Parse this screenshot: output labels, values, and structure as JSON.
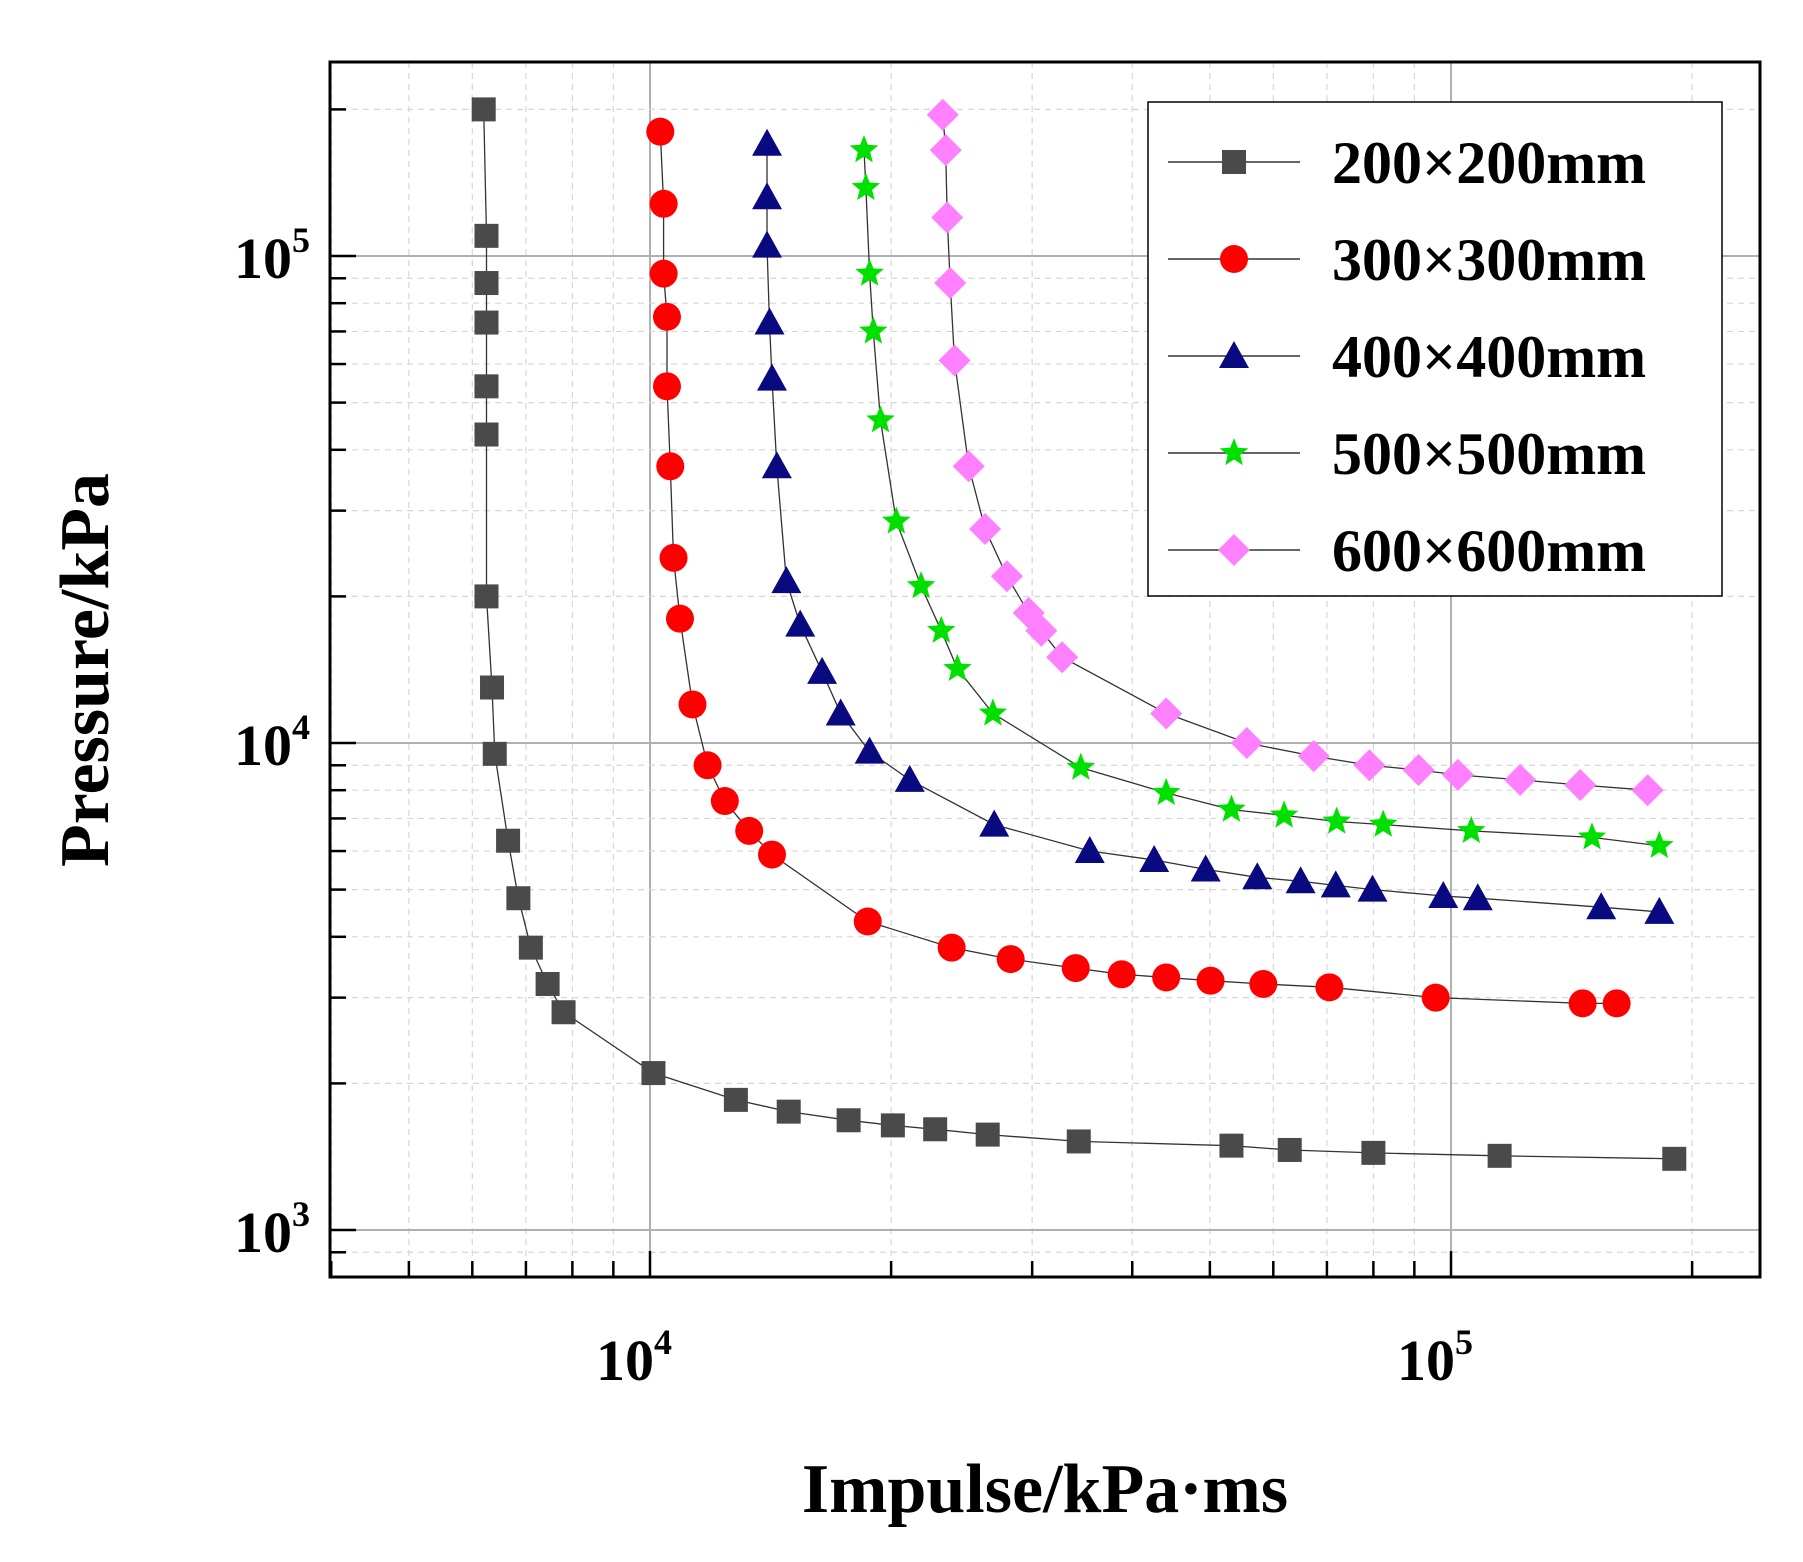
{
  "chart_data": {
    "type": "scatter",
    "xlabel": "Impulse/kPa·ms",
    "ylabel": "Pressure/kPa",
    "xscale": "log",
    "yscale": "log",
    "xlim": [
      4000,
      240000
    ],
    "ylim": [
      800,
      250000
    ],
    "x_ticks": [
      {
        "base": "10",
        "exp": "4",
        "value": 10000
      },
      {
        "base": "10",
        "exp": "5",
        "value": 100000
      }
    ],
    "y_ticks": [
      {
        "base": "10",
        "exp": "3",
        "value": 1000
      },
      {
        "base": "10",
        "exp": "4",
        "value": 10000
      },
      {
        "base": "10",
        "exp": "5",
        "value": 100000
      }
    ],
    "grid": true,
    "legend_position": "top-right",
    "series": [
      {
        "name": "200×200mm",
        "marker": "square",
        "color": "#4a4a4a",
        "points": [
          [
            6200,
            200000
          ],
          [
            6250,
            110000
          ],
          [
            6250,
            88000
          ],
          [
            6250,
            73000
          ],
          [
            6250,
            54000
          ],
          [
            6250,
            43000
          ],
          [
            6250,
            20000
          ],
          [
            6350,
            13000
          ],
          [
            6400,
            9500
          ],
          [
            6650,
            6300
          ],
          [
            6850,
            4800
          ],
          [
            7100,
            3800
          ],
          [
            7450,
            3200
          ],
          [
            7800,
            2800
          ],
          [
            10100,
            2100
          ],
          [
            12800,
            1850
          ],
          [
            14900,
            1750
          ],
          [
            17700,
            1680
          ],
          [
            20100,
            1640
          ],
          [
            22700,
            1610
          ],
          [
            26400,
            1570
          ],
          [
            34300,
            1520
          ],
          [
            53200,
            1490
          ],
          [
            62900,
            1460
          ],
          [
            80000,
            1440
          ],
          [
            115000,
            1420
          ],
          [
            190000,
            1400
          ]
        ]
      },
      {
        "name": "300×300mm",
        "marker": "circle",
        "color": "#ff0000",
        "points": [
          [
            10300,
            180000
          ],
          [
            10400,
            128000
          ],
          [
            10400,
            92000
          ],
          [
            10500,
            75000
          ],
          [
            10500,
            54000
          ],
          [
            10600,
            37000
          ],
          [
            10700,
            24000
          ],
          [
            10900,
            18000
          ],
          [
            11300,
            12000
          ],
          [
            11800,
            9000
          ],
          [
            12400,
            7600
          ],
          [
            13300,
            6600
          ],
          [
            14200,
            5900
          ],
          [
            18700,
            4300
          ],
          [
            23800,
            3800
          ],
          [
            28200,
            3600
          ],
          [
            34000,
            3450
          ],
          [
            38800,
            3350
          ],
          [
            44100,
            3300
          ],
          [
            50100,
            3250
          ],
          [
            58300,
            3200
          ],
          [
            70500,
            3150
          ],
          [
            95700,
            3000
          ],
          [
            146000,
            2920
          ],
          [
            161000,
            2920
          ]
        ]
      },
      {
        "name": "400×400mm",
        "marker": "triangle",
        "color": "#0a0a80",
        "points": [
          [
            14000,
            170000
          ],
          [
            14000,
            132000
          ],
          [
            14000,
            105000
          ],
          [
            14100,
            73000
          ],
          [
            14200,
            56000
          ],
          [
            14400,
            37000
          ],
          [
            14800,
            21500
          ],
          [
            15400,
            17500
          ],
          [
            16400,
            14000
          ],
          [
            17300,
            11500
          ],
          [
            18800,
            9600
          ],
          [
            21100,
            8400
          ],
          [
            26900,
            6800
          ],
          [
            35400,
            6000
          ],
          [
            42600,
            5750
          ],
          [
            49400,
            5500
          ],
          [
            57300,
            5300
          ],
          [
            64900,
            5200
          ],
          [
            71800,
            5100
          ],
          [
            79800,
            5000
          ],
          [
            97800,
            4850
          ],
          [
            108000,
            4800
          ],
          [
            154000,
            4600
          ],
          [
            182000,
            4500
          ]
        ]
      },
      {
        "name": "500×500mm",
        "marker": "star",
        "color": "#00e000",
        "points": [
          [
            18500,
            165000
          ],
          [
            18600,
            138000
          ],
          [
            18800,
            92000
          ],
          [
            19000,
            70000
          ],
          [
            19400,
            46000
          ],
          [
            20300,
            28500
          ],
          [
            21800,
            21000
          ],
          [
            23100,
            17000
          ],
          [
            24200,
            14200
          ],
          [
            26800,
            11500
          ],
          [
            34500,
            8900
          ],
          [
            44100,
            7900
          ],
          [
            53200,
            7300
          ],
          [
            61900,
            7100
          ],
          [
            72000,
            6900
          ],
          [
            82300,
            6800
          ],
          [
            106000,
            6600
          ],
          [
            150000,
            6400
          ],
          [
            182000,
            6150
          ]
        ]
      },
      {
        "name": "600×600mm",
        "marker": "diamond",
        "color": "#ff80ff",
        "points": [
          [
            23200,
            195000
          ],
          [
            23400,
            165000
          ],
          [
            23500,
            120000
          ],
          [
            23700,
            88000
          ],
          [
            24000,
            61000
          ],
          [
            25000,
            37000
          ],
          [
            26200,
            27500
          ],
          [
            27900,
            22000
          ],
          [
            29700,
            18500
          ],
          [
            30800,
            17000
          ],
          [
            32700,
            15000
          ],
          [
            44100,
            11500
          ],
          [
            55600,
            10000
          ],
          [
            67400,
            9400
          ],
          [
            79100,
            9000
          ],
          [
            91100,
            8800
          ],
          [
            102000,
            8600
          ],
          [
            122000,
            8400
          ],
          [
            145000,
            8200
          ],
          [
            176000,
            8000
          ]
        ]
      }
    ]
  }
}
